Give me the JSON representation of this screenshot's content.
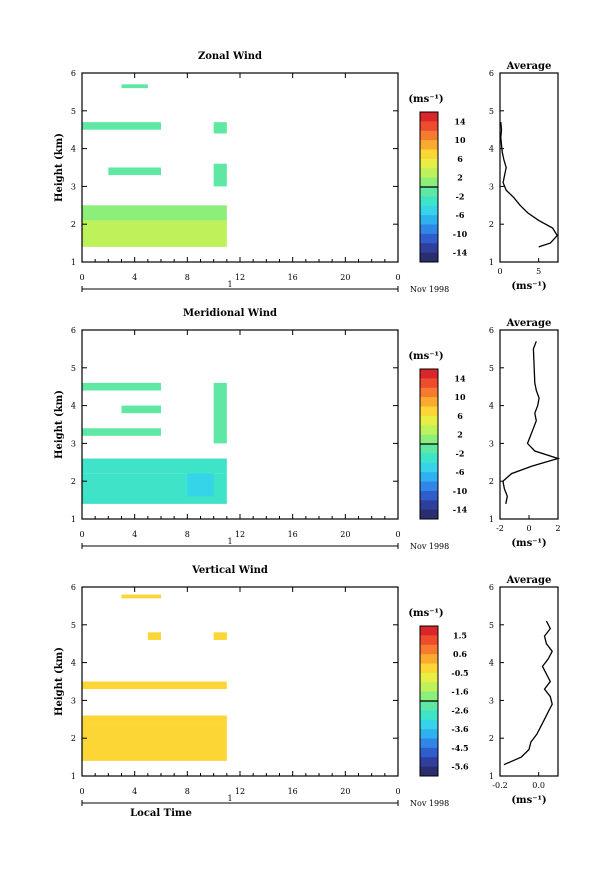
{
  "chart_data": [
    {
      "type": "heatmap",
      "title": "Zonal Wind",
      "ylabel": "Height (km)",
      "xlabel": "",
      "xlim": [
        0,
        24
      ],
      "ylim": [
        1,
        6
      ],
      "xticks": [
        "0",
        "4",
        "8",
        "12",
        "16",
        "20",
        "0"
      ],
      "yticks": [
        "1",
        "2",
        "3",
        "4",
        "5",
        "6"
      ],
      "date_label": "Nov 1998",
      "day_label": "1",
      "colorbar": {
        "unit": "(ms⁻¹)",
        "ticks": [
          "14",
          "10",
          "6",
          "2",
          "-2",
          "-6",
          "-10",
          "-14"
        ]
      },
      "cells": [
        {
          "t0": 0,
          "t1": 11,
          "h0": 1.4,
          "h1": 2.1,
          "level": 0.58
        },
        {
          "t0": 0,
          "t1": 11,
          "h0": 2.1,
          "h1": 2.5,
          "level": 0.52
        },
        {
          "t0": 2,
          "t1": 6,
          "h0": 3.3,
          "h1": 3.5,
          "level": 0.45
        },
        {
          "t0": 10,
          "t1": 11,
          "h0": 3.0,
          "h1": 3.6,
          "level": 0.45
        },
        {
          "t0": 0,
          "t1": 6,
          "h0": 4.5,
          "h1": 4.7,
          "level": 0.45
        },
        {
          "t0": 10,
          "t1": 11,
          "h0": 4.4,
          "h1": 4.7,
          "level": 0.45
        },
        {
          "t0": 3,
          "t1": 5,
          "h0": 5.6,
          "h1": 5.7,
          "level": 0.45
        }
      ],
      "profile": {
        "title": "Average",
        "unit": "(ms⁻¹)",
        "xlim": [
          0,
          7.5
        ],
        "xticks": [
          "0",
          "5"
        ],
        "heights": [
          1.4,
          1.5,
          1.7,
          1.9,
          2.1,
          2.3,
          2.5,
          2.7,
          2.9,
          3.1,
          3.3,
          3.5,
          3.7,
          3.9,
          4.1,
          4.3,
          4.5,
          4.7
        ],
        "values": [
          5.0,
          6.5,
          7.4,
          6.8,
          5.0,
          3.6,
          2.6,
          1.8,
          0.8,
          0.4,
          0.6,
          0.8,
          0.5,
          0.3,
          0.2,
          0.1,
          0.2,
          0.1
        ]
      }
    },
    {
      "type": "heatmap",
      "title": "Meridional Wind",
      "ylabel": "Height (km)",
      "xlabel": "",
      "xlim": [
        0,
        24
      ],
      "ylim": [
        1,
        6
      ],
      "xticks": [
        "0",
        "4",
        "8",
        "12",
        "16",
        "20",
        "0"
      ],
      "yticks": [
        "1",
        "2",
        "3",
        "4",
        "5",
        "6"
      ],
      "date_label": "Nov 1998",
      "day_label": "1",
      "colorbar": {
        "unit": "(ms⁻¹)",
        "ticks": [
          "14",
          "10",
          "6",
          "2",
          "-2",
          "-6",
          "-10",
          "-14"
        ]
      },
      "cells": [
        {
          "t0": 0,
          "t1": 11,
          "h0": 1.4,
          "h1": 2.2,
          "level": 0.38
        },
        {
          "t0": 8,
          "t1": 10,
          "h0": 1.6,
          "h1": 2.3,
          "level": 0.32
        },
        {
          "t0": 0,
          "t1": 11,
          "h0": 2.2,
          "h1": 2.6,
          "level": 0.42
        },
        {
          "t0": 0,
          "t1": 6,
          "h0": 3.2,
          "h1": 3.4,
          "level": 0.45
        },
        {
          "t0": 10,
          "t1": 11,
          "h0": 3.0,
          "h1": 4.6,
          "level": 0.45
        },
        {
          "t0": 0,
          "t1": 6,
          "h0": 4.4,
          "h1": 4.6,
          "level": 0.46
        },
        {
          "t0": 3,
          "t1": 6,
          "h0": 3.8,
          "h1": 4.0,
          "level": 0.46
        }
      ],
      "profile": {
        "title": "Average",
        "unit": "(ms⁻¹)",
        "xlim": [
          -2,
          2
        ],
        "xticks": [
          "-2",
          "0",
          "2"
        ],
        "heights": [
          1.4,
          1.6,
          1.8,
          2.0,
          2.2,
          2.4,
          2.6,
          2.8,
          3.0,
          3.2,
          3.4,
          3.6,
          3.8,
          4.0,
          4.2,
          4.4,
          4.6,
          5.5,
          5.7
        ],
        "values": [
          -1.6,
          -1.5,
          -1.7,
          -1.8,
          -1.2,
          0.2,
          2.0,
          0.4,
          -0.1,
          0.1,
          0.3,
          0.5,
          0.4,
          0.6,
          0.7,
          0.5,
          0.4,
          0.3,
          0.5
        ]
      }
    },
    {
      "type": "heatmap",
      "title": "Vertical Wind",
      "ylabel": "Height (km)",
      "xlabel": "Local Time",
      "xlim": [
        0,
        24
      ],
      "ylim": [
        1,
        6
      ],
      "xticks": [
        "0",
        "4",
        "8",
        "12",
        "16",
        "20",
        "0"
      ],
      "yticks": [
        "1",
        "2",
        "3",
        "4",
        "5",
        "6"
      ],
      "date_label": "Nov 1998",
      "day_label": "1",
      "colorbar": {
        "unit": "(ms⁻¹)",
        "ticks": [
          "1.5",
          "0.6",
          "-0.5",
          "-1.6",
          "-2.6",
          "-3.6",
          "-4.5",
          "-5.6"
        ]
      },
      "cells": [
        {
          "t0": 0,
          "t1": 11,
          "h0": 1.4,
          "h1": 2.4,
          "level": 0.72
        },
        {
          "t0": 0,
          "t1": 11,
          "h0": 2.4,
          "h1": 2.6,
          "level": 0.72
        },
        {
          "t0": 0,
          "t1": 11,
          "h0": 3.3,
          "h1": 3.5,
          "level": 0.72
        },
        {
          "t0": 5,
          "t1": 6,
          "h0": 4.6,
          "h1": 4.8,
          "level": 0.72
        },
        {
          "t0": 10,
          "t1": 11,
          "h0": 4.6,
          "h1": 4.8,
          "level": 0.72
        },
        {
          "t0": 3,
          "t1": 6,
          "h0": 5.7,
          "h1": 5.8,
          "level": 0.72
        }
      ],
      "profile": {
        "title": "Average",
        "unit": "(ms⁻¹)",
        "xlim": [
          -0.2,
          0.1
        ],
        "xticks": [
          "-0.2",
          "0.0"
        ],
        "heights": [
          1.3,
          1.5,
          1.7,
          1.9,
          2.1,
          2.3,
          2.5,
          2.7,
          2.9,
          3.1,
          3.3,
          3.5,
          3.7,
          3.9,
          4.1,
          4.3,
          4.5,
          4.7,
          4.9,
          5.1
        ],
        "values": [
          -0.18,
          -0.09,
          -0.05,
          -0.04,
          -0.01,
          0.01,
          0.03,
          0.05,
          0.07,
          0.06,
          0.03,
          0.06,
          0.04,
          0.02,
          0.05,
          0.07,
          0.04,
          0.03,
          0.06,
          0.04
        ]
      }
    }
  ]
}
